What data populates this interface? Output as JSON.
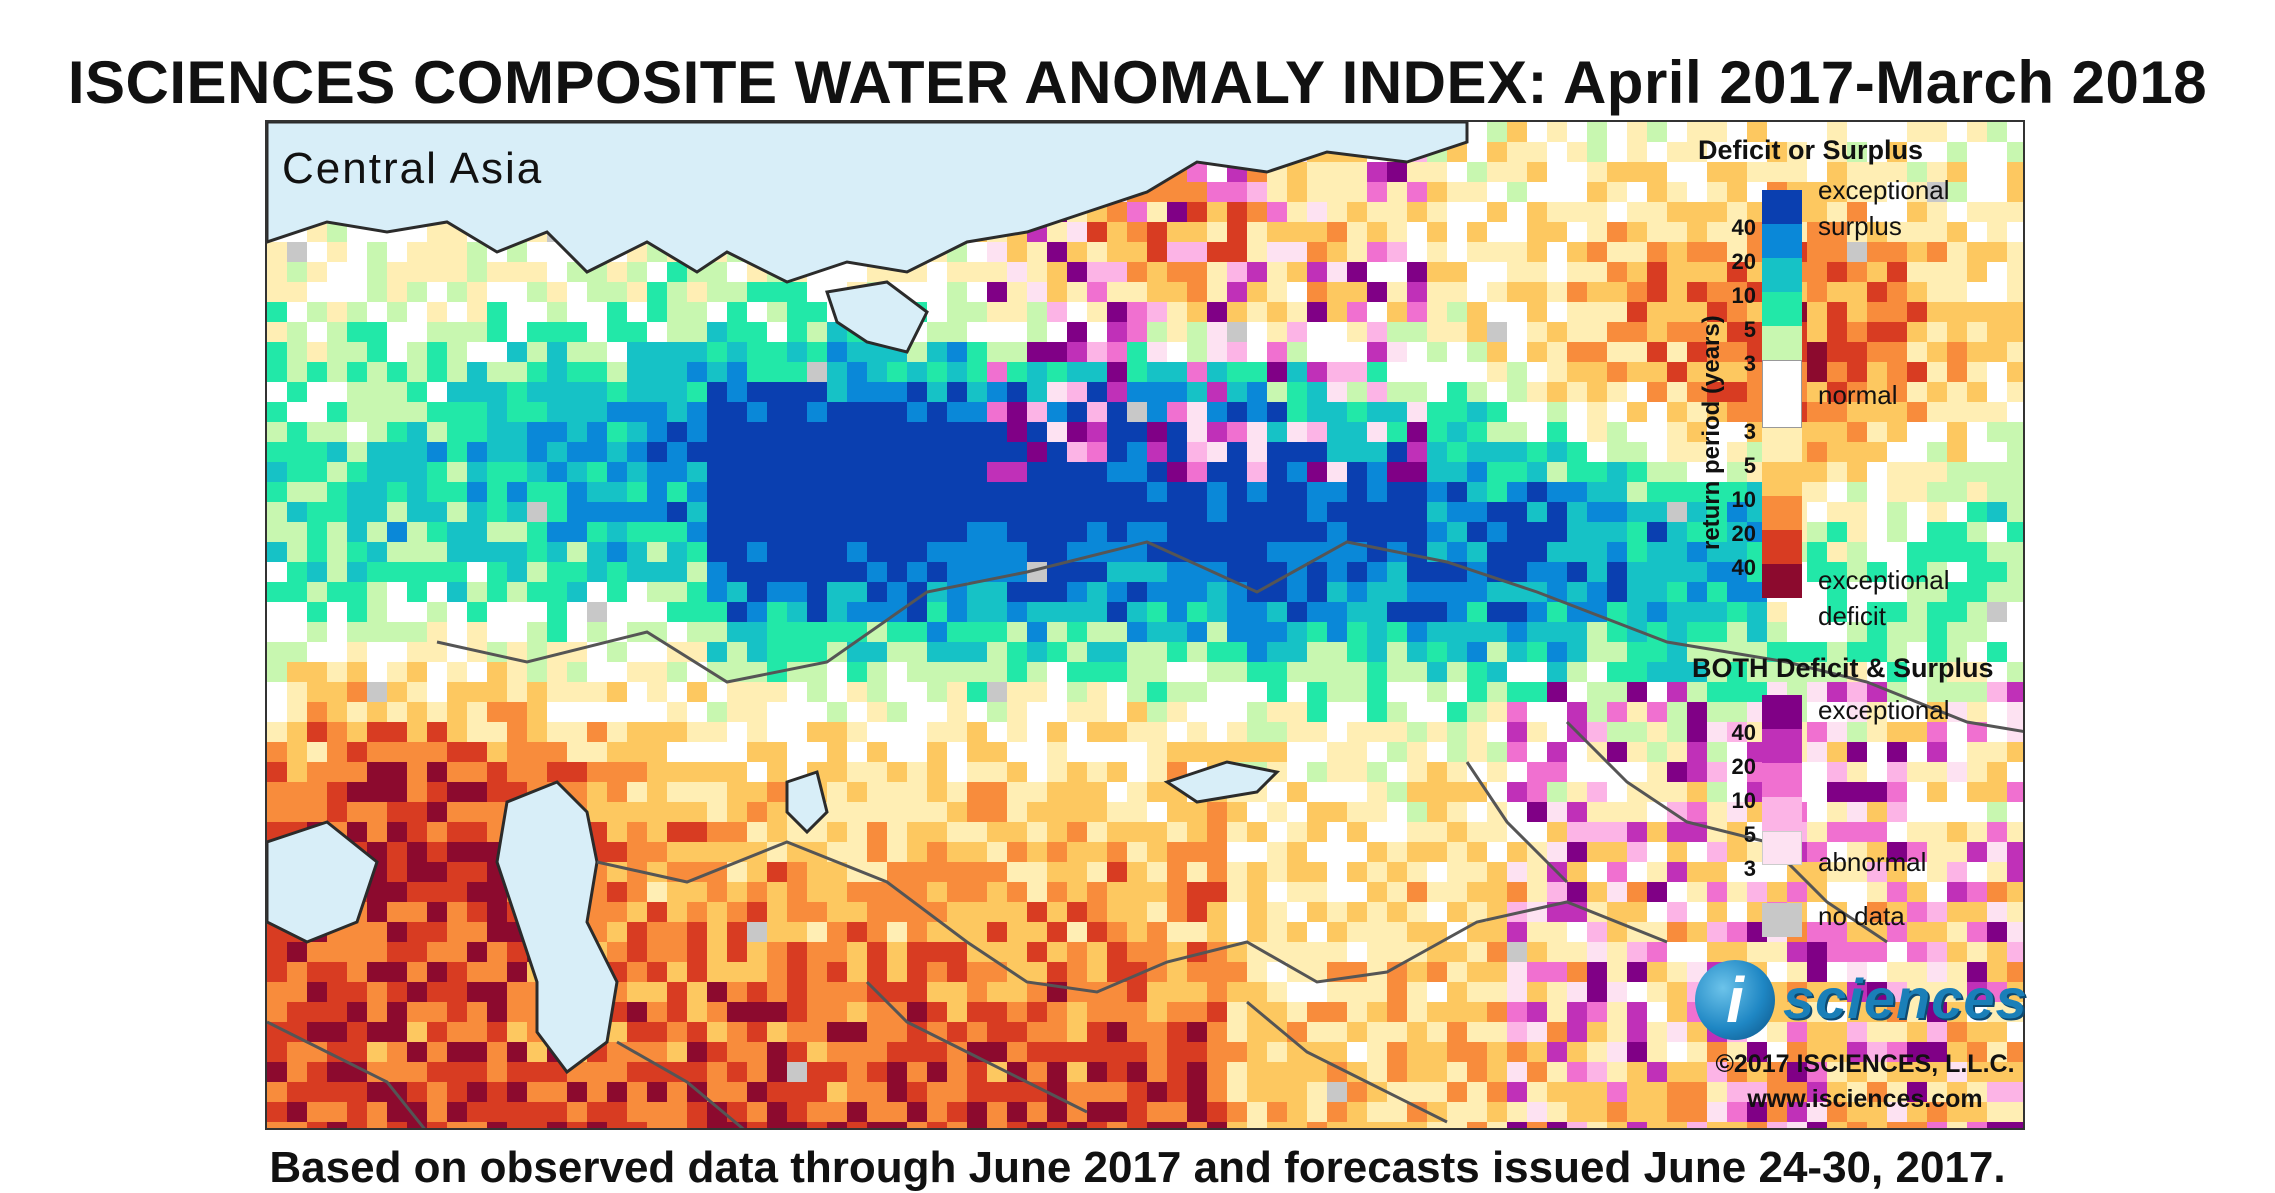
{
  "title": "ISCIENCES COMPOSITE WATER ANOMALY INDEX: April 2017-March 2018",
  "footer": "Based on observed data through June 2017 and forecasts issued June 24-30, 2017.",
  "region": "Central Asia",
  "legend": {
    "deficit_surplus_heading": "Deficit or Surplus",
    "return_period_label": "return period (years)",
    "ds_boxes": [
      {
        "color": "#0a3fb0"
      },
      {
        "color": "#0a88d8"
      },
      {
        "color": "#16c2c6"
      },
      {
        "color": "#22e8a8"
      },
      {
        "color": "#c8f7b0"
      },
      {
        "color": "#ffffff"
      },
      {
        "color": "#ffeeb4"
      },
      {
        "color": "#fdc860"
      },
      {
        "color": "#f88c3c"
      },
      {
        "color": "#d83c22"
      },
      {
        "color": "#8c0a2e"
      }
    ],
    "ds_numbers": [
      "40",
      "20",
      "10",
      "5",
      "3",
      "3",
      "5",
      "10",
      "20",
      "40"
    ],
    "exceptional_surplus_1": "exceptional",
    "exceptional_surplus_2": "surplus",
    "normal": "normal",
    "exceptional_deficit_1": "exceptional",
    "exceptional_deficit_2": "deficit",
    "both_heading": "BOTH Deficit & Surplus",
    "both_boxes": [
      {
        "color": "#800086"
      },
      {
        "color": "#c030b8"
      },
      {
        "color": "#f070d0"
      },
      {
        "color": "#fcb4e6"
      },
      {
        "color": "#fde2f2"
      }
    ],
    "both_numbers": [
      "40",
      "20",
      "10",
      "5",
      "3"
    ],
    "both_exceptional": "exceptional",
    "both_abnormal": "abnormal",
    "no_data_color": "#c8c8c8",
    "no_data": "no data"
  },
  "logo": {
    "letter": "i",
    "name": "sciences"
  },
  "copyright": "©2017 ISCIENCES, L.L.C.",
  "website": "www.isciences.com"
}
